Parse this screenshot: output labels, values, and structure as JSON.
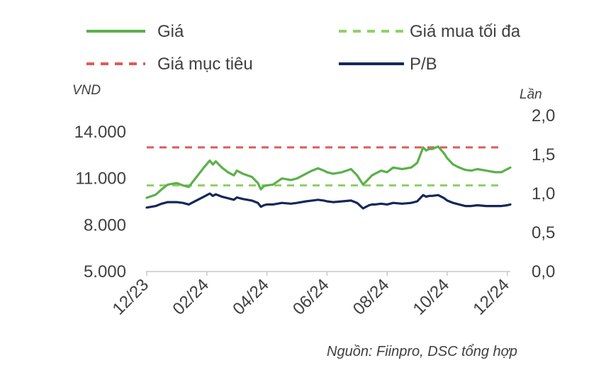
{
  "chart_data": {
    "type": "line",
    "legend": [
      {
        "name": "Giá",
        "color": "#5bb04a",
        "dash": "solid"
      },
      {
        "name": "Giá mua tối đa",
        "color": "#8fd16a",
        "dash": "dashed"
      },
      {
        "name": "Giá mục tiêu",
        "color": "#e05a5a",
        "dash": "dashed"
      },
      {
        "name": "P/B",
        "color": "#14285a",
        "dash": "solid"
      }
    ],
    "left_axis": {
      "unit": "VND",
      "ticks": [
        "5.000",
        "8.000",
        "11.000",
        "14.000"
      ],
      "range": [
        5000,
        14000
      ]
    },
    "right_axis": {
      "unit": "Lần",
      "ticks": [
        "0,0",
        "0,5",
        "1,0",
        "1,5",
        "2,0"
      ],
      "range": [
        0,
        2.0
      ]
    },
    "x_ticks": [
      "12/23",
      "02/24",
      "04/24",
      "06/24",
      "08/24",
      "10/24",
      "12/24"
    ],
    "x_range": [
      0,
      12.1
    ],
    "reference_lines": {
      "target_price": 13000,
      "max_buy_price": 10550
    },
    "series": [
      {
        "name": "Giá",
        "axis": "left",
        "x": [
          0,
          0.3,
          0.5,
          0.7,
          1.0,
          1.2,
          1.4,
          1.5,
          1.7,
          1.9,
          2.1,
          2.2,
          2.3,
          2.5,
          2.7,
          2.9,
          3.0,
          3.2,
          3.5,
          3.7,
          3.8,
          3.9,
          4.0,
          4.2,
          4.5,
          4.8,
          5.0,
          5.3,
          5.5,
          5.7,
          5.9,
          6.0,
          6.2,
          6.5,
          6.8,
          7.0,
          7.2,
          7.4,
          7.5,
          7.6,
          7.8,
          8.0,
          8.2,
          8.5,
          8.8,
          9.0,
          9.2,
          9.3,
          9.4,
          9.5,
          9.7,
          9.9,
          10.0,
          10.2,
          10.4,
          10.6,
          10.8,
          11.0,
          11.3,
          11.6,
          11.8,
          12.0,
          12.1
        ],
        "values": [
          9750,
          9950,
          10300,
          10600,
          10700,
          10550,
          10450,
          10700,
          11200,
          11700,
          12150,
          11900,
          12100,
          11700,
          11400,
          11200,
          11500,
          11300,
          11100,
          10700,
          10300,
          10500,
          10550,
          10600,
          11000,
          10900,
          11000,
          11300,
          11500,
          11650,
          11500,
          11400,
          11300,
          11400,
          11600,
          11200,
          10600,
          11000,
          11200,
          11300,
          11500,
          11400,
          11700,
          11600,
          11700,
          12000,
          13000,
          12800,
          12900,
          12900,
          13050,
          12600,
          12300,
          11900,
          11700,
          11550,
          11500,
          11600,
          11500,
          11400,
          11400,
          11600,
          11700
        ]
      },
      {
        "name": "P/B",
        "axis": "right",
        "x": [
          0,
          0.3,
          0.5,
          0.7,
          1.0,
          1.2,
          1.4,
          1.5,
          1.7,
          1.9,
          2.1,
          2.2,
          2.3,
          2.5,
          2.7,
          2.9,
          3.0,
          3.2,
          3.5,
          3.7,
          3.8,
          3.9,
          4.0,
          4.2,
          4.5,
          4.8,
          5.0,
          5.3,
          5.5,
          5.7,
          5.9,
          6.0,
          6.2,
          6.5,
          6.8,
          7.0,
          7.2,
          7.4,
          7.5,
          7.6,
          7.8,
          8.0,
          8.2,
          8.5,
          8.8,
          9.0,
          9.2,
          9.3,
          9.4,
          9.5,
          9.7,
          9.9,
          10.0,
          10.2,
          10.4,
          10.6,
          10.8,
          11.0,
          11.3,
          11.6,
          11.8,
          12.0,
          12.1
        ],
        "values": [
          0.82,
          0.84,
          0.87,
          0.89,
          0.89,
          0.88,
          0.86,
          0.88,
          0.92,
          0.96,
          1.0,
          0.97,
          0.99,
          0.96,
          0.94,
          0.92,
          0.95,
          0.93,
          0.91,
          0.88,
          0.83,
          0.85,
          0.86,
          0.86,
          0.88,
          0.87,
          0.88,
          0.9,
          0.91,
          0.92,
          0.91,
          0.9,
          0.89,
          0.9,
          0.91,
          0.88,
          0.81,
          0.85,
          0.86,
          0.86,
          0.87,
          0.86,
          0.88,
          0.87,
          0.88,
          0.9,
          0.98,
          0.96,
          0.97,
          0.97,
          0.98,
          0.94,
          0.91,
          0.88,
          0.86,
          0.84,
          0.84,
          0.85,
          0.84,
          0.84,
          0.84,
          0.85,
          0.86
        ]
      }
    ],
    "source_note": "Nguồn: Fiinpro, DSC tổng hợp"
  }
}
